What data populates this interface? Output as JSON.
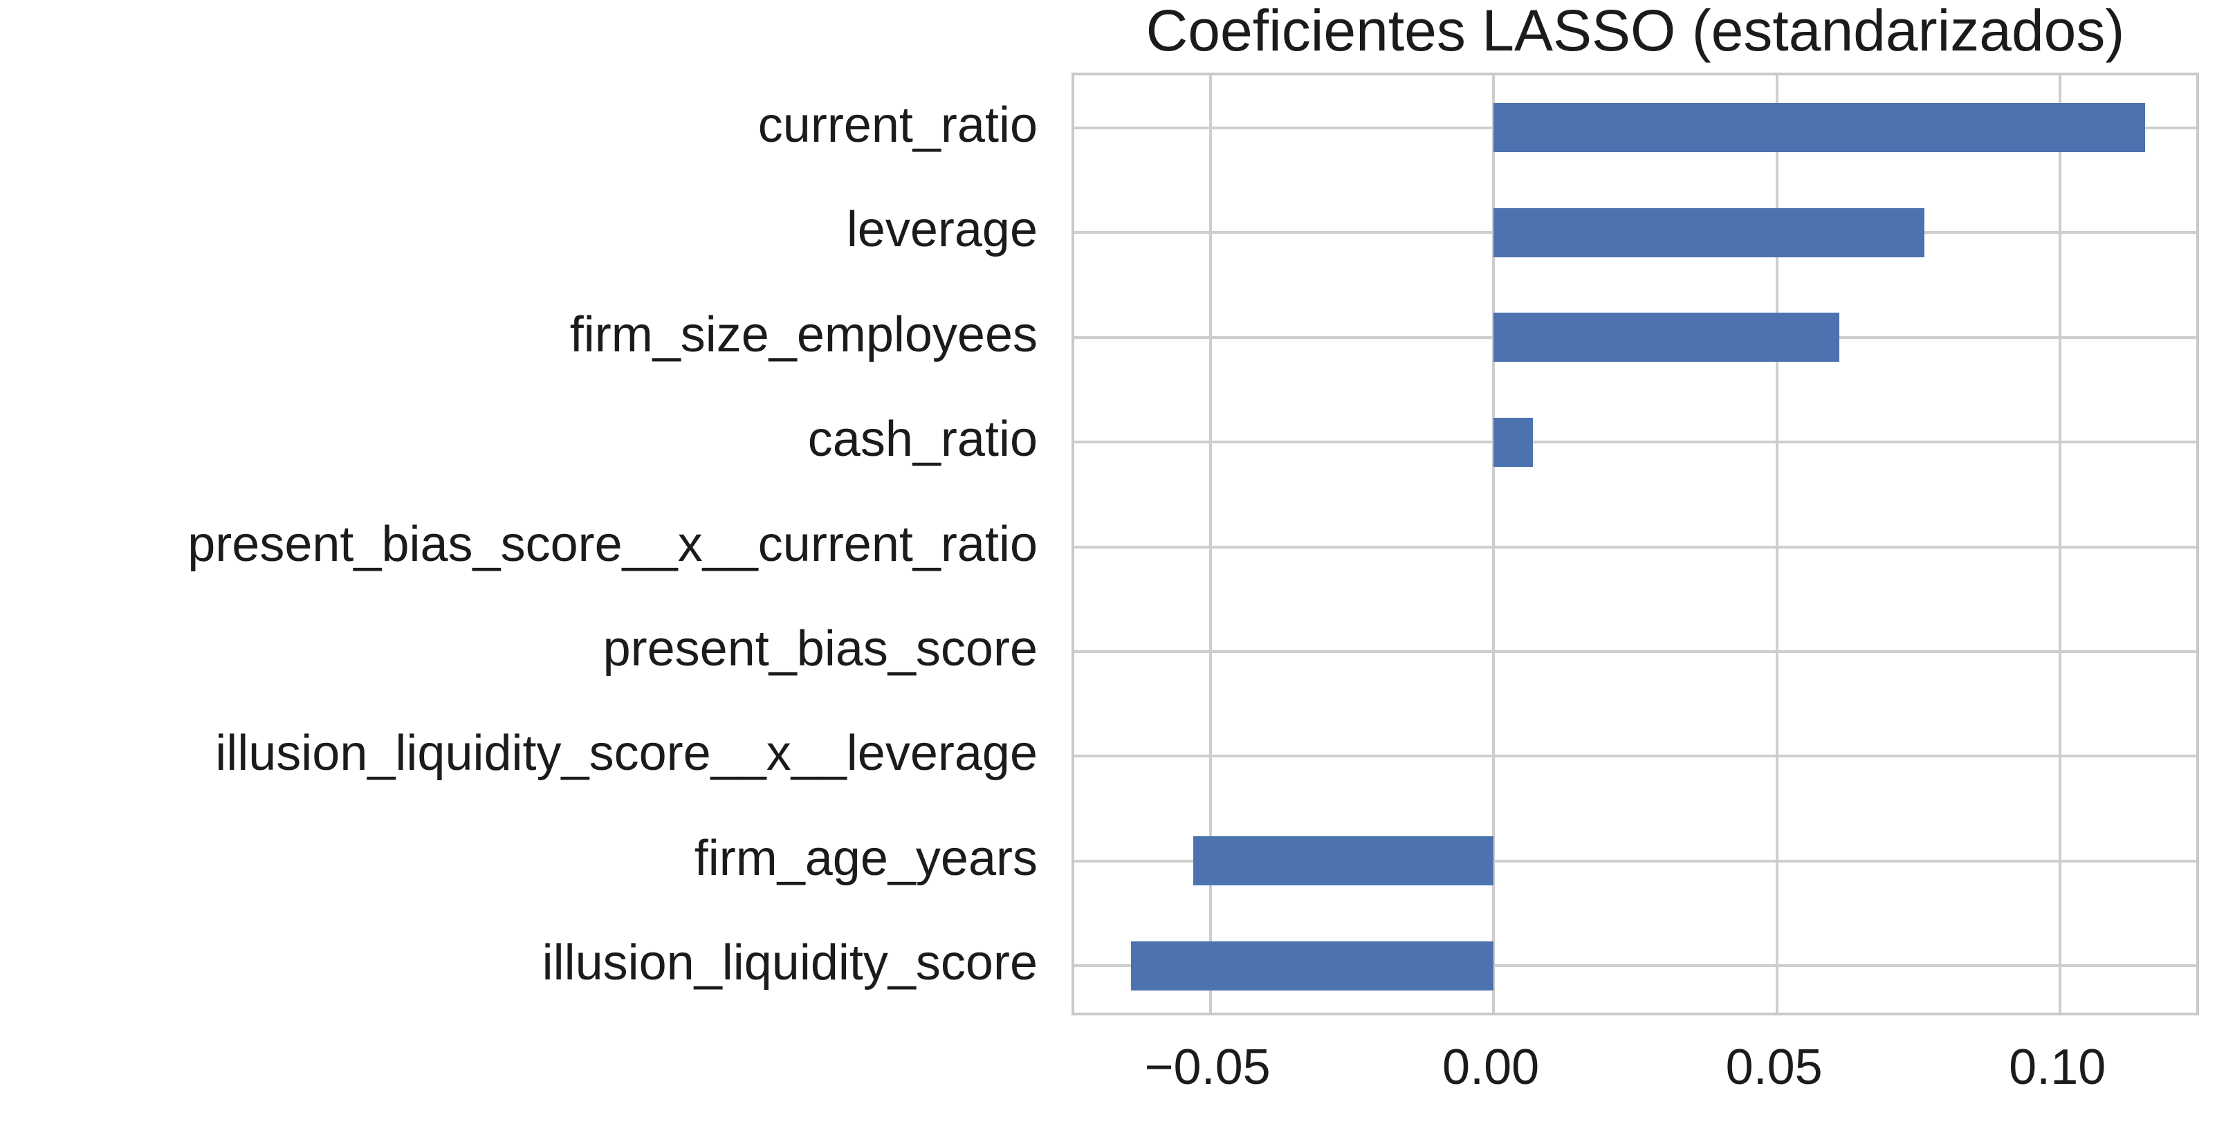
{
  "chart_data": {
    "type": "bar",
    "orientation": "horizontal",
    "title": "Coeficientes LASSO (estandarizados)",
    "categories": [
      "current_ratio",
      "leverage",
      "firm_size_employees",
      "cash_ratio",
      "present_bias_score__x__current_ratio",
      "present_bias_score",
      "illusion_liquidity_score__x__leverage",
      "firm_age_years",
      "illusion_liquidity_score"
    ],
    "values": [
      0.115,
      0.076,
      0.061,
      0.007,
      0.0,
      0.0,
      0.0,
      -0.053,
      -0.064
    ],
    "xlabel": "",
    "ylabel": "",
    "xlim": [
      -0.074,
      0.125
    ],
    "xtick_values": [
      -0.05,
      0.0,
      0.05,
      0.1
    ],
    "xtick_labels": [
      "−0.05",
      "0.00",
      "0.05",
      "0.10"
    ],
    "grid": true,
    "legend": false,
    "colors": {
      "bar": "#4C72B0",
      "grid": "#cecece",
      "spine": "#c9c9c9",
      "text": "#1b1b1b",
      "background": "#ffffff"
    }
  }
}
